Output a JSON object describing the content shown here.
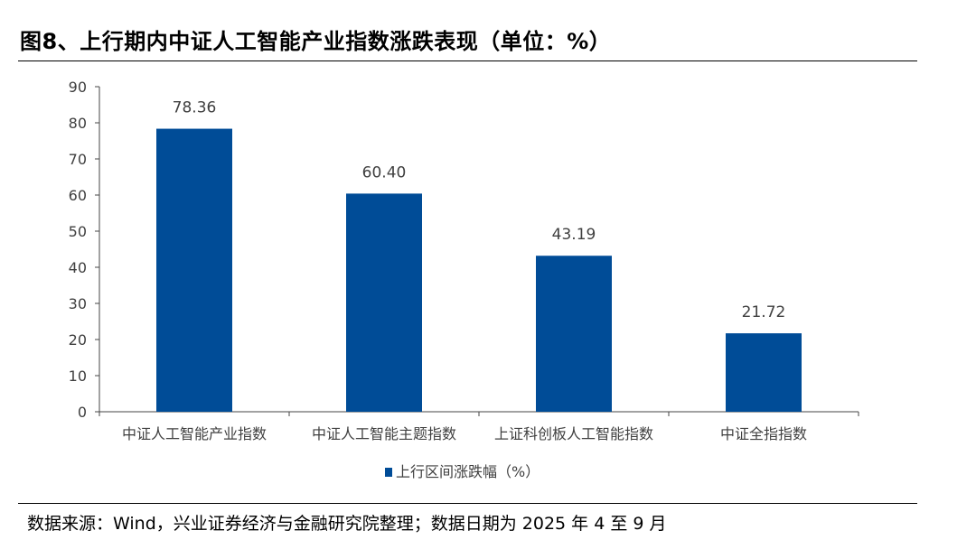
{
  "header": {
    "title": "图8、上行期内中证人工智能产业指数涨跌表现（单位：%）"
  },
  "footer": {
    "source": "数据来源：Wind，兴业证券经济与金融研究院整理；数据日期为 2025 年 4 至 9 月"
  },
  "chart_data": {
    "type": "bar",
    "categories": [
      "中证人工智能产业指数",
      "中证人工智能主题指数",
      "上证科创板人工智能指数",
      "中证全指指数"
    ],
    "series": [
      {
        "name": "上行区间涨跌幅（%）",
        "values": [
          78.36,
          60.4,
          43.19,
          21.72
        ],
        "value_labels": [
          "78.36",
          "60.40",
          "43.19",
          "21.72"
        ],
        "color": "#004c97"
      }
    ],
    "ylim": [
      0,
      90
    ],
    "yticks": [
      0,
      10,
      20,
      30,
      40,
      50,
      60,
      70,
      80,
      90
    ],
    "grid": false,
    "legend_position": "bottom"
  }
}
